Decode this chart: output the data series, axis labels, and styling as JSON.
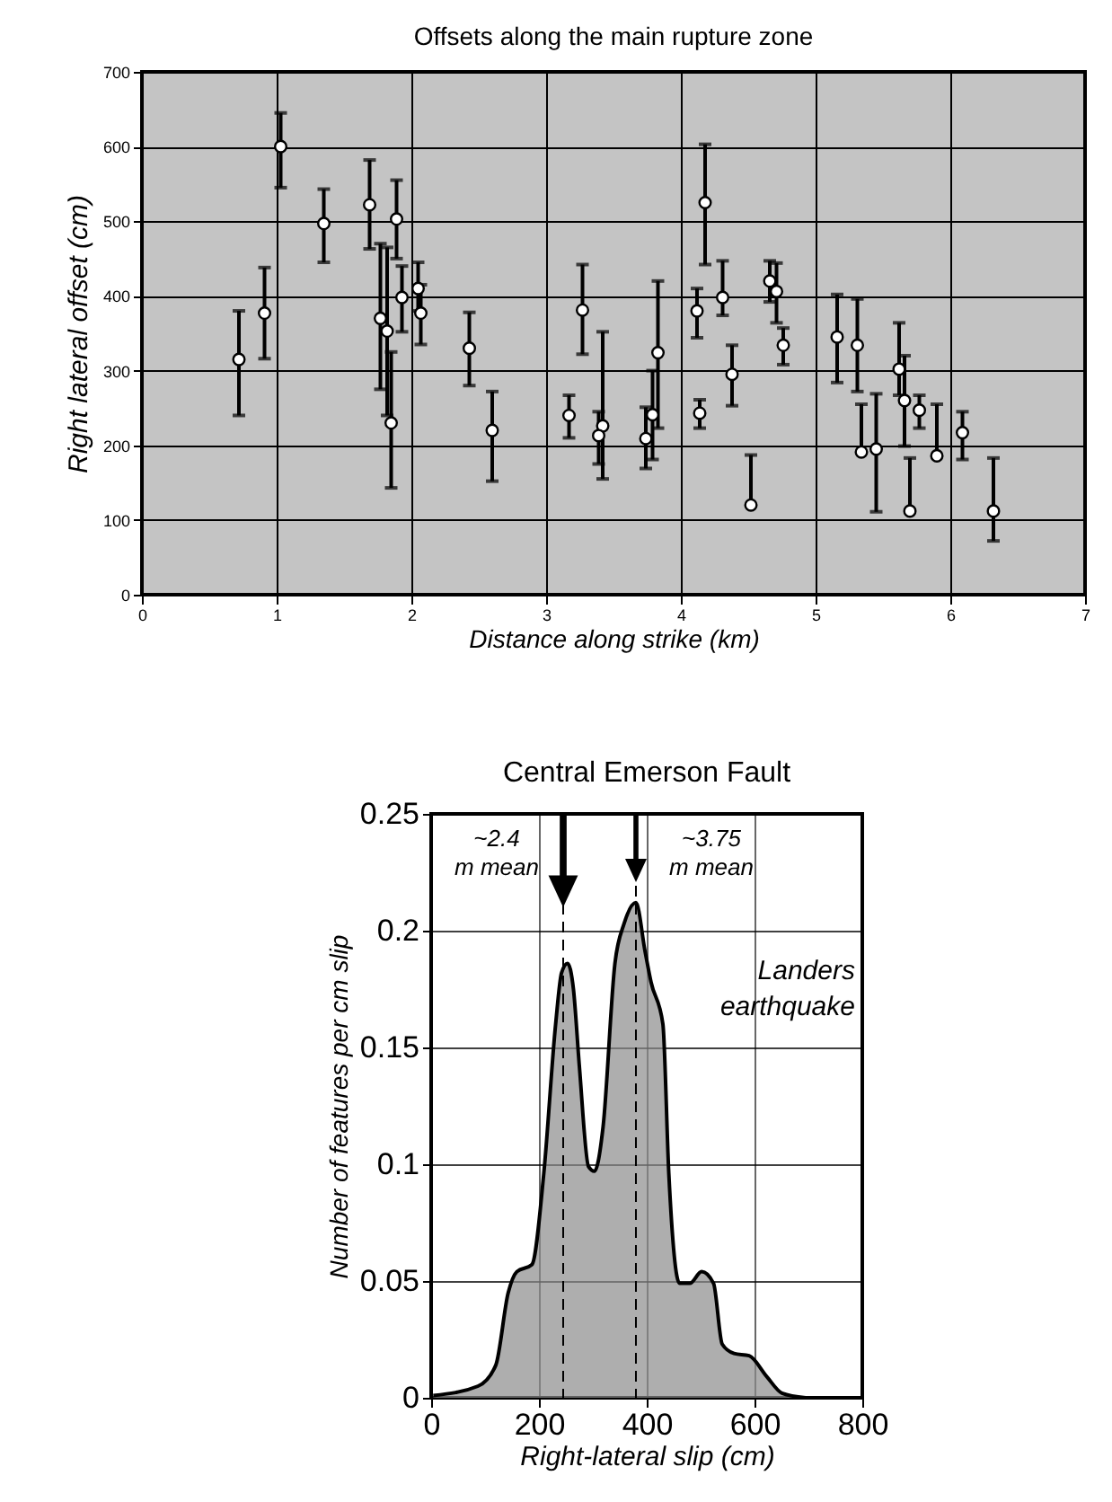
{
  "chart_data": [
    {
      "type": "scatter",
      "title": "Offsets along the main rupture zone",
      "xlabel": "Distance along strike (km)",
      "ylabel": "Right lateral offset (cm)",
      "color": "#ffffff",
      "marker": "circle",
      "grid": true,
      "xlim": [
        0,
        7
      ],
      "xticks": [
        0,
        1,
        2,
        3,
        4,
        5,
        6,
        7
      ],
      "ylim": [
        0,
        700
      ],
      "yticks": [
        0,
        100,
        200,
        300,
        400,
        500,
        600,
        700
      ],
      "x": [
        0.72,
        0.91,
        1.03,
        1.35,
        1.69,
        1.77,
        1.82,
        1.85,
        1.89,
        1.93,
        2.05,
        2.07,
        2.43,
        2.6,
        3.17,
        3.27,
        3.42,
        3.39,
        3.74,
        3.79,
        3.83,
        4.12,
        4.14,
        4.18,
        4.31,
        4.38,
        4.52,
        4.66,
        4.71,
        4.76,
        5.16,
        5.31,
        5.34,
        5.45,
        5.62,
        5.66,
        5.7,
        5.77,
        5.9,
        6.09,
        6.32
      ],
      "values": [
        315,
        377,
        600,
        497,
        522,
        370,
        353,
        230,
        503,
        398,
        410,
        377,
        330,
        220,
        240,
        381,
        226,
        213,
        209,
        241,
        324,
        380,
        243,
        525,
        398,
        295,
        120,
        420,
        406,
        334,
        345,
        334,
        191,
        195,
        302,
        260,
        112,
        247,
        186,
        217,
        112
      ],
      "errors": [
        [
          240,
          380
        ],
        [
          316,
          438
        ],
        [
          545,
          645
        ],
        [
          445,
          543
        ],
        [
          463,
          582
        ],
        [
          275,
          470
        ],
        [
          240,
          465
        ],
        [
          143,
          325
        ],
        [
          450,
          555
        ],
        [
          352,
          440
        ],
        [
          380,
          445
        ],
        [
          335,
          415
        ],
        [
          280,
          378
        ],
        [
          152,
          272
        ],
        [
          210,
          267
        ],
        [
          322,
          442
        ],
        [
          155,
          352
        ],
        [
          175,
          245
        ],
        [
          169,
          251
        ],
        [
          181,
          300
        ],
        [
          223,
          420
        ],
        [
          344,
          410
        ],
        [
          223,
          261
        ],
        [
          442,
          603
        ],
        [
          374,
          447
        ],
        [
          253,
          334
        ],
        [
          120,
          187
        ],
        [
          392,
          447
        ],
        [
          364,
          444
        ],
        [
          308,
          357
        ],
        [
          284,
          402
        ],
        [
          272,
          396
        ],
        [
          191,
          255
        ],
        [
          111,
          269
        ],
        [
          267,
          364
        ],
        [
          199,
          320
        ],
        [
          112,
          183
        ],
        [
          223,
          267
        ],
        [
          186,
          255
        ],
        [
          181,
          245
        ],
        [
          72,
          183
        ]
      ]
    },
    {
      "type": "area",
      "title": "Central Emerson Fault",
      "xlabel": "Right-lateral slip (cm)",
      "ylabel": "Number of features per cm slip",
      "color": "#8c8c8c",
      "grid": true,
      "xlim": [
        0,
        800
      ],
      "xticks": [
        0,
        200,
        400,
        600,
        800
      ],
      "ylim": [
        0,
        0.25
      ],
      "yticks": [
        0,
        0.05,
        0.1,
        0.15,
        0.2,
        0.25
      ],
      "x": [
        4,
        87,
        120,
        143,
        159,
        187,
        209,
        231,
        242,
        253,
        264,
        275,
        292,
        303,
        319,
        341,
        358,
        380,
        397,
        408,
        430,
        441,
        461,
        480,
        502,
        524,
        540,
        562,
        590,
        623,
        651,
        695
      ],
      "values": [
        0.001,
        0.005,
        0.014,
        0.045,
        0.054,
        0.057,
        0.096,
        0.16,
        0.182,
        0.186,
        0.175,
        0.142,
        0.099,
        0.097,
        0.116,
        0.186,
        0.203,
        0.212,
        0.191,
        0.178,
        0.16,
        0.096,
        0.049,
        0.049,
        0.054,
        0.049,
        0.023,
        0.019,
        0.018,
        0.009,
        0.002,
        0
      ],
      "ref_lines": [
        {
          "axis": "x",
          "value": 245,
          "label": "~2.4 m mean",
          "line_style": "dashed"
        },
        {
          "axis": "x",
          "value": 380,
          "label": "~3.75 m mean",
          "line_style": "dashed"
        }
      ],
      "annotations": [
        "Landers earthquake"
      ]
    }
  ]
}
